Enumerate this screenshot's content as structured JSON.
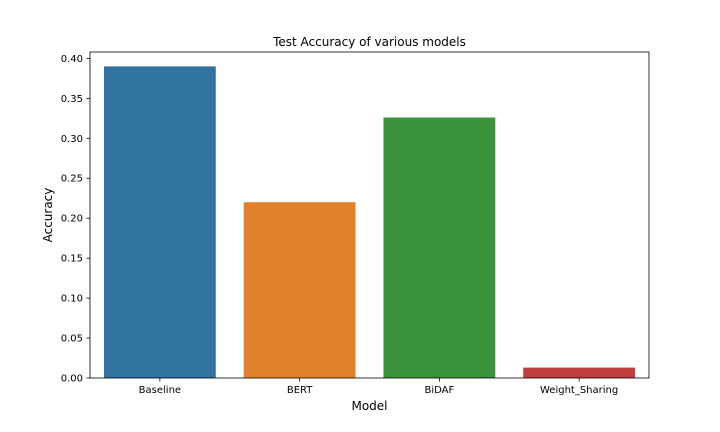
{
  "chart_data": {
    "type": "bar",
    "title": "Test Accuracy of various models",
    "xlabel": "Model",
    "ylabel": "Accuracy",
    "categories": [
      "Baseline",
      "BERT",
      "BiDAF",
      "Weight_Sharing"
    ],
    "values": [
      0.39,
      0.22,
      0.326,
      0.013
    ],
    "colors": [
      "#3274a1",
      "#e1812c",
      "#3a923a",
      "#c03d3e"
    ],
    "ylim": [
      0,
      0.408
    ],
    "yticks": [
      0.0,
      0.05,
      0.1,
      0.15,
      0.2,
      0.25,
      0.3,
      0.35,
      0.4
    ],
    "ytick_labels": [
      "0.00",
      "0.05",
      "0.10",
      "0.15",
      "0.20",
      "0.25",
      "0.30",
      "0.35",
      "0.40"
    ],
    "grid": false,
    "legend": "none"
  }
}
